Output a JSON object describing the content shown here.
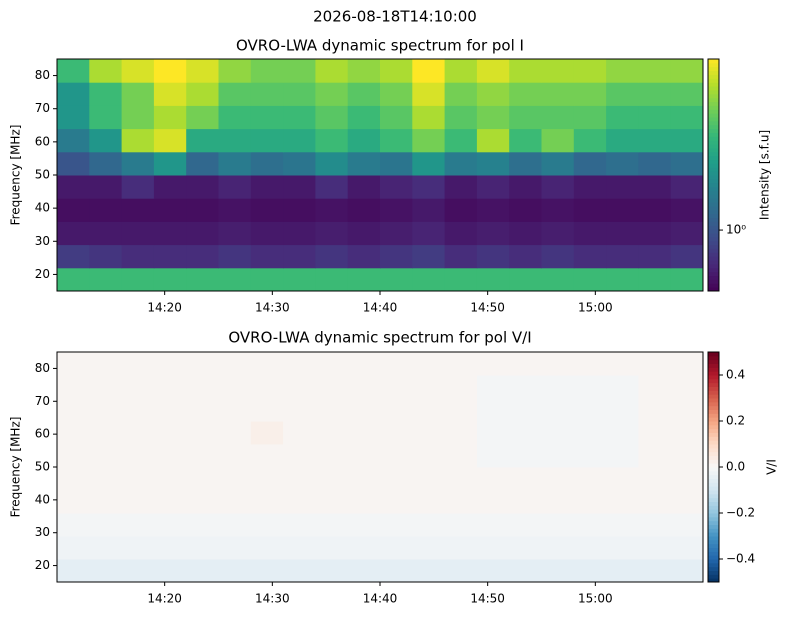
{
  "suptitle": "2026-08-18T14:10:00",
  "chart_data": [
    {
      "type": "heatmap",
      "title": "OVRO-LWA dynamic spectrum for pol I",
      "ylabel": "Frequency [MHz]",
      "xlim": [
        "14:10",
        "15:10"
      ],
      "xticks": [
        "14:20",
        "14:30",
        "14:40",
        "14:50",
        "15:00"
      ],
      "ylim": [
        15,
        85
      ],
      "yticks": [
        20,
        30,
        40,
        50,
        60,
        70,
        80
      ],
      "zlabel": "Intensity [s.f.u]",
      "zscale": "log",
      "zlim": [
        0.5,
        7
      ],
      "zticks": [
        {
          "value": 1,
          "label": "10⁰"
        }
      ],
      "z": [
        [
          3,
          3,
          3,
          3,
          3,
          3,
          3,
          3,
          3,
          3,
          3,
          3,
          3,
          3,
          3,
          3,
          3,
          3,
          3,
          3
        ],
        [
          0.8,
          0.75,
          0.7,
          0.7,
          0.7,
          0.75,
          0.7,
          0.7,
          0.75,
          0.7,
          0.75,
          0.8,
          0.7,
          0.75,
          0.7,
          0.75,
          0.7,
          0.7,
          0.7,
          0.75
        ],
        [
          0.6,
          0.6,
          0.6,
          0.6,
          0.6,
          0.62,
          0.6,
          0.6,
          0.62,
          0.6,
          0.62,
          0.65,
          0.6,
          0.62,
          0.6,
          0.62,
          0.6,
          0.6,
          0.6,
          0.62
        ],
        [
          0.55,
          0.55,
          0.55,
          0.55,
          0.55,
          0.57,
          0.55,
          0.55,
          0.57,
          0.55,
          0.57,
          0.6,
          0.55,
          0.57,
          0.55,
          0.57,
          0.55,
          0.55,
          0.55,
          0.57
        ],
        [
          0.6,
          0.6,
          0.7,
          0.6,
          0.6,
          0.65,
          0.6,
          0.6,
          0.7,
          0.6,
          0.65,
          0.7,
          0.6,
          0.65,
          0.6,
          0.65,
          0.6,
          0.6,
          0.6,
          0.65
        ],
        [
          1,
          1.2,
          1.5,
          2,
          1.2,
          1.5,
          1.3,
          1.4,
          1.8,
          1.5,
          1.4,
          2,
          1.5,
          1.6,
          1.3,
          1.5,
          1.2,
          1.3,
          1.2,
          1.3
        ],
        [
          1.5,
          2,
          5,
          6,
          2.5,
          2.5,
          2.5,
          2.5,
          3,
          2.5,
          3,
          4,
          3,
          5,
          3,
          4,
          3,
          2.5,
          2.5,
          2.5
        ],
        [
          2,
          3,
          4,
          5,
          4,
          3,
          3,
          3,
          3.5,
          3,
          3.5,
          5,
          3.5,
          4,
          3.5,
          3.5,
          3.5,
          3,
          3,
          3
        ],
        [
          2,
          3,
          4,
          6,
          5,
          3.5,
          3.5,
          3.5,
          4,
          3.5,
          4,
          6,
          4,
          4.5,
          4,
          4,
          4,
          3.5,
          3.5,
          3.5
        ],
        [
          3,
          5,
          6,
          7,
          6,
          4.5,
          4,
          4,
          5,
          4.5,
          5,
          7,
          5,
          6,
          5,
          5,
          5,
          4.5,
          4.5,
          4.5
        ]
      ]
    },
    {
      "type": "heatmap",
      "title": "OVRO-LWA dynamic spectrum for pol V/I",
      "ylabel": "Frequency [MHz]",
      "xlim": [
        "14:10",
        "15:10"
      ],
      "xticks": [
        "14:20",
        "14:30",
        "14:40",
        "14:50",
        "15:00"
      ],
      "ylim": [
        15,
        85
      ],
      "yticks": [
        20,
        30,
        40,
        50,
        60,
        70,
        80
      ],
      "zlabel": "V/I",
      "zscale": "linear",
      "zlim": [
        -0.5,
        0.5
      ],
      "zticks": [
        {
          "value": -0.4,
          "label": "−0.4"
        },
        {
          "value": -0.2,
          "label": "−0.2"
        },
        {
          "value": 0,
          "label": "0.0"
        },
        0.2,
        0.4
      ],
      "z": [
        [
          -0.05,
          -0.05,
          -0.05,
          -0.05,
          -0.05,
          -0.05,
          -0.05,
          -0.05,
          -0.05,
          -0.05,
          -0.05,
          -0.05,
          -0.05,
          -0.05,
          -0.05,
          -0.05,
          -0.05,
          -0.05,
          -0.05,
          -0.05
        ],
        [
          -0.02,
          -0.02,
          -0.02,
          -0.02,
          -0.02,
          -0.02,
          -0.02,
          -0.02,
          -0.02,
          -0.02,
          -0.02,
          -0.02,
          -0.02,
          -0.02,
          -0.02,
          -0.02,
          -0.02,
          -0.02,
          -0.02,
          -0.02
        ],
        [
          -0.01,
          -0.01,
          -0.01,
          -0.01,
          -0.01,
          -0.01,
          -0.01,
          -0.01,
          -0.01,
          -0.01,
          -0.01,
          -0.01,
          -0.01,
          -0.01,
          -0.01,
          -0.01,
          -0.01,
          -0.01,
          -0.01,
          -0.01
        ],
        [
          0.01,
          0.01,
          0.01,
          0.01,
          0.01,
          0.01,
          0.01,
          0.01,
          0.01,
          0.01,
          0.01,
          0.01,
          0.01,
          0.01,
          0.01,
          0.01,
          0.01,
          0.01,
          0.01,
          0.01
        ],
        [
          0.01,
          0.01,
          0.01,
          0.01,
          0.01,
          0.01,
          0.01,
          0.01,
          0.01,
          0.01,
          0.01,
          0.01,
          0.01,
          0.01,
          0.01,
          0.01,
          0.01,
          0.01,
          0.01,
          0.01
        ],
        [
          0.01,
          0.01,
          0.01,
          0.01,
          0.01,
          0.01,
          0.01,
          0.01,
          0.01,
          0.01,
          0.01,
          0.01,
          0.01,
          -0.01,
          -0.01,
          -0.01,
          -0.01,
          -0.01,
          0.01,
          0.01
        ],
        [
          0.01,
          0.01,
          0.01,
          0.01,
          0.01,
          0.01,
          0.03,
          0.01,
          0.01,
          0.01,
          0.01,
          0.01,
          0.01,
          -0.01,
          -0.01,
          -0.01,
          -0.01,
          -0.01,
          0.01,
          0.01
        ],
        [
          0.01,
          0.01,
          0.01,
          0.01,
          0.01,
          0.01,
          0.01,
          0.01,
          0.01,
          0.01,
          0.01,
          0.01,
          0.01,
          -0.01,
          -0.01,
          -0.01,
          -0.01,
          -0.01,
          0.01,
          0.01
        ],
        [
          0.01,
          0.01,
          0.01,
          0.01,
          0.01,
          0.01,
          0.01,
          0.01,
          0.01,
          0.01,
          0.01,
          0.01,
          0.01,
          -0.01,
          -0.01,
          -0.01,
          -0.01,
          -0.01,
          0.01,
          0.01
        ],
        [
          0.01,
          0.01,
          0.01,
          0.01,
          0.01,
          0.01,
          0.01,
          0.01,
          0.01,
          0.01,
          0.01,
          0.01,
          0.01,
          0.01,
          0.01,
          0.01,
          0.01,
          0.01,
          0.01,
          0.01
        ]
      ]
    }
  ]
}
